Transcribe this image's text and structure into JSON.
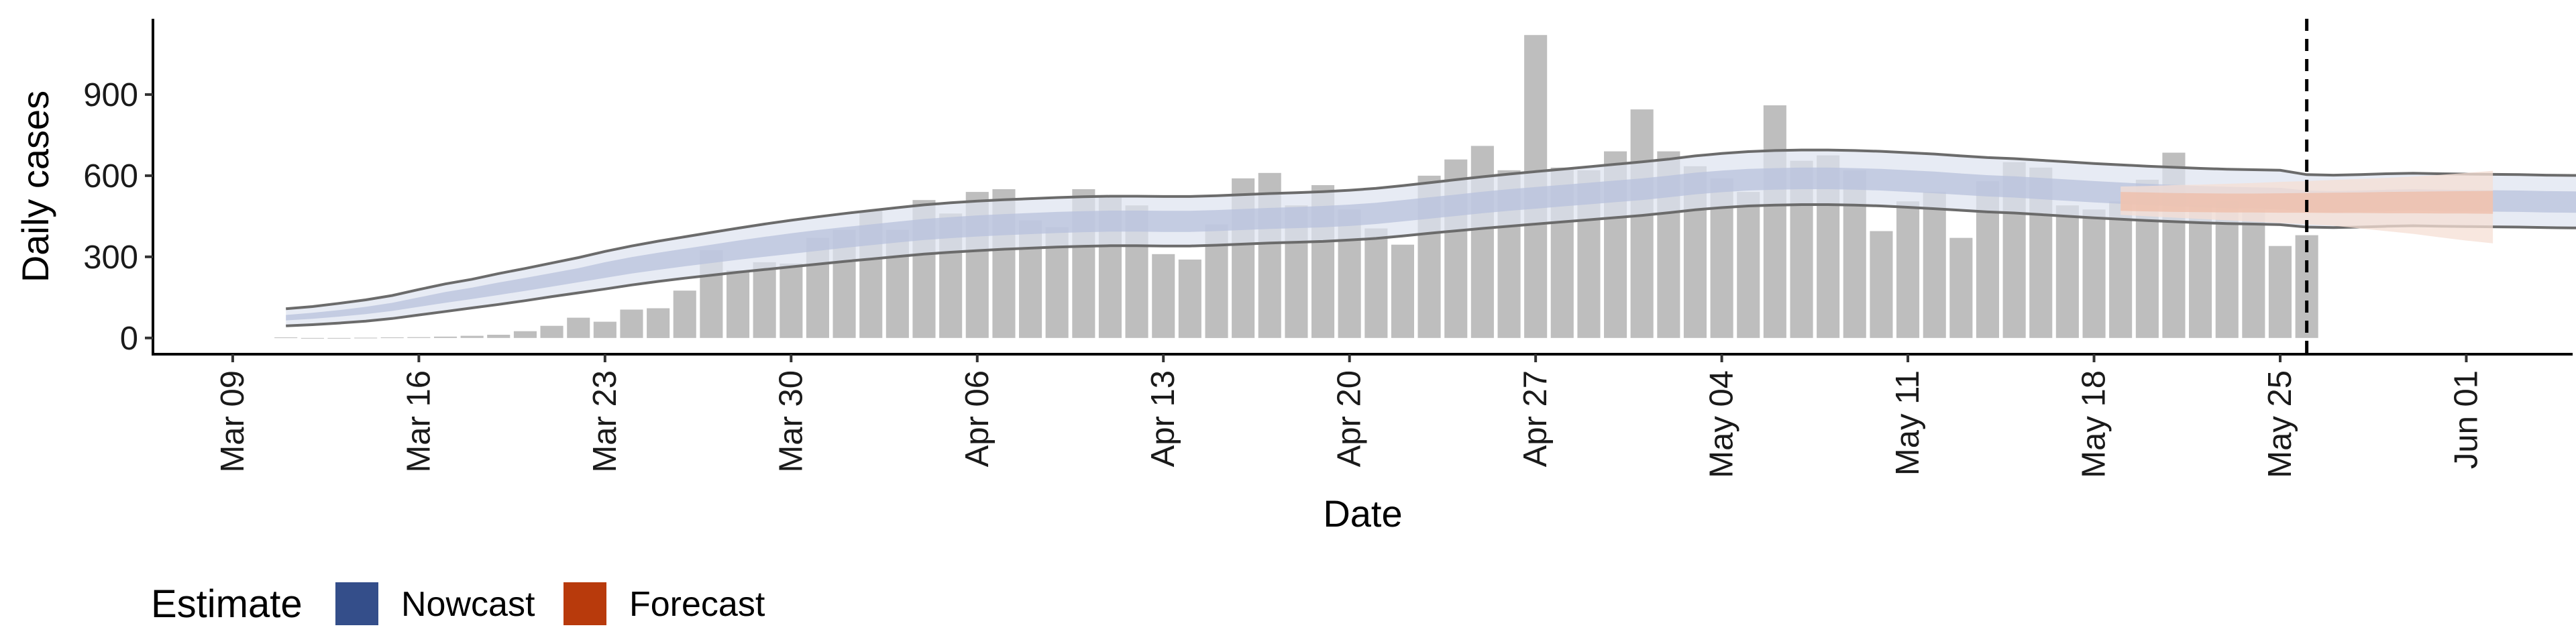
{
  "chart_data": {
    "type": "bar",
    "xlabel": "Date",
    "ylabel": "Daily cases",
    "ylim": [
      -60,
      1180
    ],
    "yticks": [
      0,
      300,
      600,
      900
    ],
    "xlim": [
      "2020-03-06",
      "2020-06-05"
    ],
    "xticks": [
      {
        "date": "2020-03-09",
        "label": "Mar 09"
      },
      {
        "date": "2020-03-16",
        "label": "Mar 16"
      },
      {
        "date": "2020-03-23",
        "label": "Mar 23"
      },
      {
        "date": "2020-03-30",
        "label": "Mar 30"
      },
      {
        "date": "2020-04-06",
        "label": "Apr 06"
      },
      {
        "date": "2020-04-13",
        "label": "Apr 13"
      },
      {
        "date": "2020-04-20",
        "label": "Apr 20"
      },
      {
        "date": "2020-04-27",
        "label": "Apr 27"
      },
      {
        "date": "2020-05-04",
        "label": "May 04"
      },
      {
        "date": "2020-05-11",
        "label": "May 11"
      },
      {
        "date": "2020-05-18",
        "label": "May 18"
      },
      {
        "date": "2020-05-25",
        "label": "May 25"
      },
      {
        "date": "2020-06-01",
        "label": "Jun 01"
      }
    ],
    "grid": false,
    "cases": {
      "start_date": "2020-03-11",
      "values": [
        2,
        0,
        0,
        1,
        2,
        3,
        5,
        8,
        12,
        25,
        45,
        75,
        60,
        105,
        110,
        175,
        325,
        250,
        280,
        275,
        370,
        400,
        470,
        400,
        510,
        460,
        540,
        550,
        435,
        410,
        550,
        525,
        490,
        310,
        290,
        420,
        590,
        610,
        490,
        565,
        475,
        405,
        345,
        600,
        660,
        710,
        620,
        1120,
        630,
        620,
        690,
        845,
        690,
        635,
        590,
        540,
        860,
        655,
        675,
        620,
        395,
        505,
        540,
        370,
        580,
        650,
        630,
        490,
        475,
        505,
        585,
        685,
        490,
        505,
        475,
        340,
        380
      ],
      "color": "#bebebe"
    },
    "nowcast": {
      "start_date": "2020-03-11",
      "inner_upper": [
        85,
        93,
        103,
        115,
        130,
        150,
        170,
        186,
        205,
        222,
        240,
        258,
        280,
        299,
        315,
        330,
        345,
        360,
        374,
        387,
        399,
        410,
        420,
        430,
        440,
        447,
        453,
        458,
        462,
        466,
        469,
        471,
        471,
        470,
        470,
        473,
        477,
        481,
        484,
        488,
        493,
        500,
        510,
        520,
        530,
        541,
        550,
        558,
        566,
        574,
        582,
        590,
        600,
        611,
        619,
        625,
        628,
        630,
        630,
        628,
        625,
        620,
        615,
        608,
        602,
        598,
        592,
        586,
        580,
        575,
        570,
        566,
        562,
        559,
        557,
        555,
        545,
        543,
        545,
        548,
        550,
        548,
        547,
        546,
        545,
        543,
        542,
        541,
        540,
        538
      ],
      "inner_lower": [
        65,
        71,
        79,
        88,
        100,
        115,
        130,
        144,
        159,
        174,
        190,
        206,
        222,
        238,
        252,
        265,
        277,
        289,
        300,
        311,
        322,
        333,
        343,
        353,
        362,
        369,
        375,
        380,
        384,
        388,
        391,
        393,
        393,
        392,
        392,
        395,
        399,
        403,
        406,
        409,
        414,
        421,
        431,
        441,
        451,
        461,
        470,
        478,
        486,
        494,
        502,
        510,
        520,
        531,
        539,
        545,
        548,
        550,
        550,
        548,
        545,
        540,
        535,
        529,
        523,
        519,
        513,
        507,
        501,
        496,
        491,
        487,
        483,
        480,
        478,
        476,
        466,
        464,
        466,
        469,
        471,
        469,
        468,
        467,
        466,
        464,
        463,
        462,
        461,
        459
      ],
      "outer_upper": [
        108,
        116,
        128,
        141,
        157,
        179,
        200,
        217,
        238,
        257,
        277,
        297,
        320,
        340,
        358,
        374,
        390,
        406,
        421,
        435,
        448,
        460,
        471,
        482,
        492,
        500,
        506,
        511,
        515,
        519,
        522,
        524,
        524,
        523,
        523,
        526,
        530,
        534,
        537,
        541,
        546,
        553,
        563,
        574,
        585,
        596,
        606,
        615,
        624,
        633,
        642,
        651,
        661,
        673,
        682,
        689,
        693,
        695,
        695,
        693,
        690,
        685,
        680,
        673,
        667,
        663,
        657,
        651,
        645,
        640,
        635,
        631,
        627,
        624,
        622,
        620,
        604,
        602,
        604,
        607,
        609,
        607,
        606,
        605,
        604,
        602,
        601,
        600,
        599,
        597
      ],
      "outer_lower": [
        45,
        49,
        55,
        62,
        72,
        85,
        98,
        111,
        124,
        138,
        153,
        167,
        181,
        196,
        209,
        221,
        232,
        243,
        253,
        263,
        273,
        283,
        292,
        301,
        310,
        317,
        323,
        328,
        332,
        336,
        339,
        341,
        341,
        340,
        340,
        343,
        347,
        351,
        354,
        357,
        362,
        368,
        377,
        387,
        396,
        405,
        413,
        421,
        429,
        437,
        445,
        453,
        463,
        474,
        482,
        488,
        491,
        493,
        493,
        491,
        488,
        483,
        478,
        472,
        466,
        462,
        456,
        450,
        444,
        439,
        434,
        430,
        426,
        423,
        421,
        419,
        410,
        408,
        410,
        413,
        415,
        413,
        412,
        411,
        410,
        408,
        407,
        406,
        405,
        403
      ],
      "colors": {
        "outer": "#dde2ef",
        "inner": "#b8c2dc",
        "line": "#6b6b6b"
      }
    },
    "forecast": {
      "start_date": "2020-05-19",
      "inner_upper": [
        540,
        538,
        536,
        535,
        534,
        534,
        535,
        536,
        537,
        538,
        540,
        541,
        542,
        543,
        544
      ],
      "inner_lower": [
        470,
        468,
        466,
        465,
        464,
        464,
        463,
        463,
        462,
        462,
        461,
        461,
        460,
        460,
        459
      ],
      "outer_upper": [
        560,
        562,
        565,
        567,
        570,
        573,
        577,
        580,
        584,
        588,
        592,
        597,
        603,
        610,
        618
      ],
      "outer_lower": [
        455,
        450,
        445,
        440,
        435,
        430,
        425,
        420,
        415,
        405,
        395,
        385,
        372,
        360,
        350
      ],
      "colors": {
        "outer": "#f6dfd4",
        "inner": "#eebba5"
      }
    },
    "vline": {
      "date": "2020-05-26",
      "style": "dashed"
    },
    "legend": {
      "title": "Estimate",
      "position": "bottom-left",
      "items": [
        {
          "label": "Nowcast",
          "color": "#344e8a"
        },
        {
          "label": "Forecast",
          "color": "#b83a0c"
        }
      ]
    }
  }
}
